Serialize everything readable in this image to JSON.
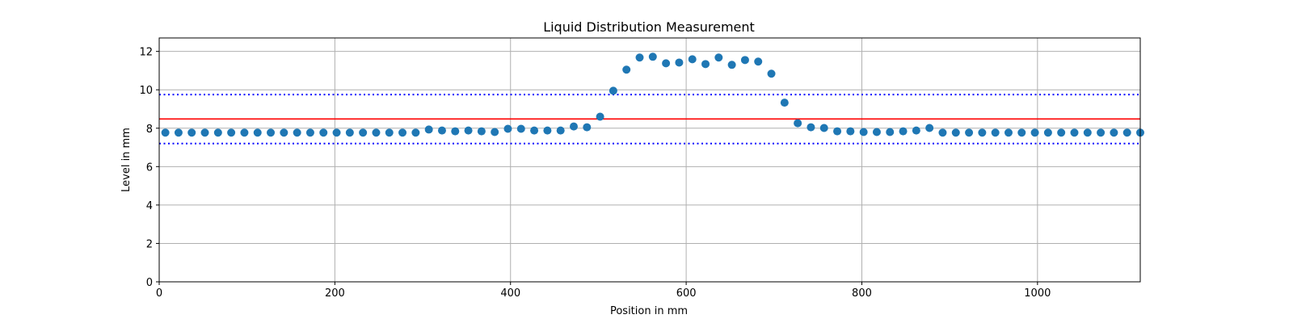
{
  "chart_data": {
    "type": "scatter",
    "title": "Liquid Distribution Measurement",
    "xlabel": "Position in mm",
    "ylabel": "Level in mm",
    "xlim": [
      0,
      1117
    ],
    "ylim": [
      0,
      12.7
    ],
    "x_ticks": [
      0,
      200,
      400,
      600,
      800,
      1000
    ],
    "y_ticks": [
      0,
      2,
      4,
      6,
      8,
      10,
      12
    ],
    "x_tick_labels": [
      "0",
      "200",
      "400",
      "600",
      "800",
      "1000"
    ],
    "y_tick_labels": [
      "0",
      "2",
      "4",
      "6",
      "8",
      "10",
      "12"
    ],
    "grid": true,
    "colors": {
      "points": "#1f77b4",
      "mean_line": "#ff0000",
      "bound_lines": "#0000ff",
      "grid": "#b0b0b0",
      "axes": "#000000"
    },
    "reference_lines": [
      {
        "name": "mean",
        "y": 8.48,
        "style": "solid"
      },
      {
        "name": "upper-bound",
        "y": 9.75,
        "style": "dotted"
      },
      {
        "name": "lower-bound",
        "y": 7.2,
        "style": "dotted"
      }
    ],
    "series": [
      {
        "name": "level",
        "x": [
          7,
          22,
          37,
          52,
          67,
          82,
          97,
          112,
          127,
          142,
          157,
          172,
          187,
          202,
          217,
          232,
          247,
          262,
          277,
          292,
          307,
          322,
          337,
          352,
          367,
          382,
          397,
          412,
          427,
          442,
          457,
          472,
          487,
          502,
          517,
          532,
          547,
          562,
          577,
          592,
          607,
          622,
          637,
          652,
          667,
          682,
          697,
          712,
          727,
          742,
          757,
          772,
          787,
          802,
          817,
          832,
          847,
          862,
          877,
          892,
          907,
          922,
          937,
          952,
          967,
          982,
          997,
          1012,
          1027,
          1042,
          1057,
          1072,
          1087,
          1102,
          1117
        ],
        "y": [
          7.77,
          7.77,
          7.77,
          7.77,
          7.77,
          7.77,
          7.77,
          7.77,
          7.77,
          7.77,
          7.77,
          7.77,
          7.77,
          7.77,
          7.77,
          7.77,
          7.77,
          7.77,
          7.77,
          7.77,
          7.93,
          7.88,
          7.84,
          7.88,
          7.84,
          7.8,
          7.97,
          7.97,
          7.88,
          7.88,
          7.88,
          8.09,
          8.05,
          8.6,
          9.95,
          11.05,
          11.68,
          11.72,
          11.38,
          11.42,
          11.59,
          11.34,
          11.68,
          11.3,
          11.55,
          11.47,
          10.84,
          9.33,
          8.26,
          8.05,
          8.01,
          7.84,
          7.84,
          7.8,
          7.8,
          7.8,
          7.84,
          7.88,
          8.01,
          7.77,
          7.77,
          7.77,
          7.77,
          7.77,
          7.77,
          7.77,
          7.77,
          7.77,
          7.77,
          7.77,
          7.77,
          7.77,
          7.77,
          7.77,
          7.77
        ]
      }
    ]
  }
}
